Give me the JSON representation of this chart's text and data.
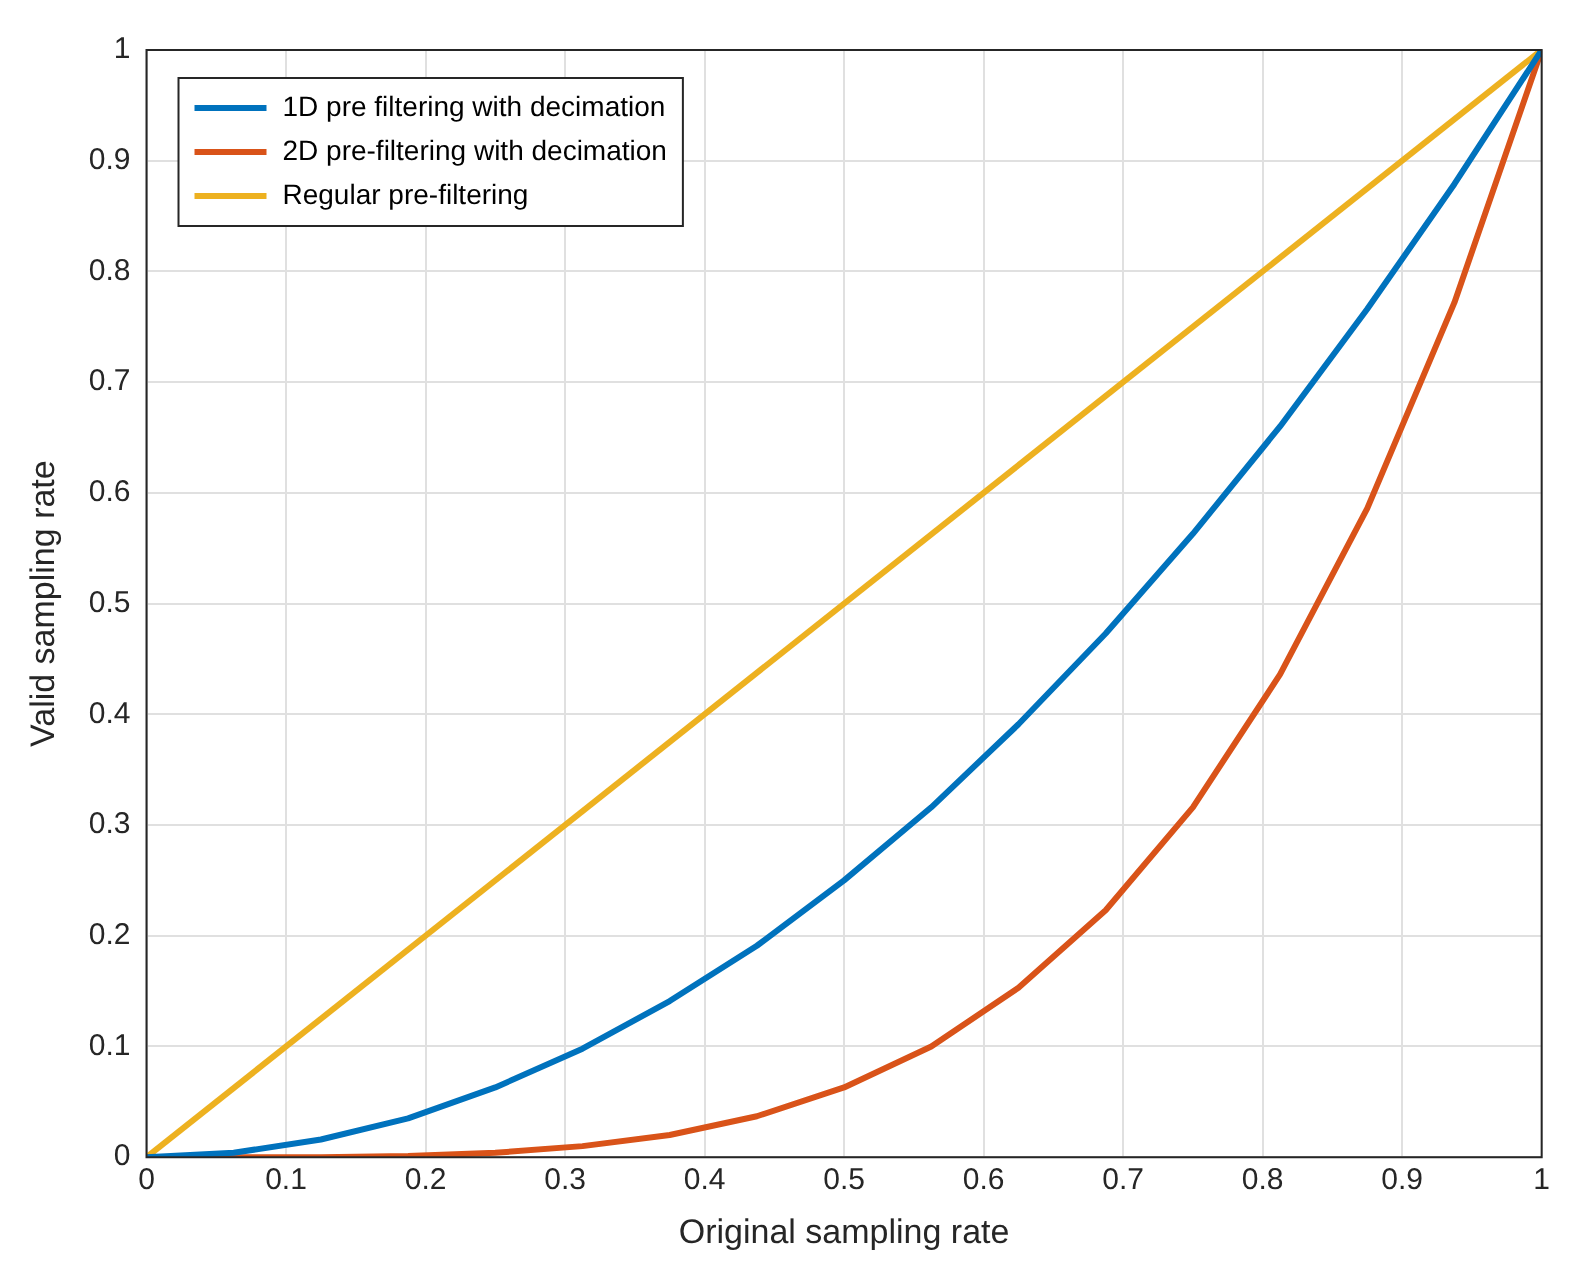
{
  "chart_data": {
    "type": "line",
    "xlabel": "Original sampling rate",
    "ylabel": "Valid sampling rate",
    "series": [
      {
        "name": "1D pre filtering with decimation",
        "color": "#0072bd",
        "x": [
          0,
          0.0625,
          0.125,
          0.1875,
          0.25,
          0.3125,
          0.375,
          0.4375,
          0.5,
          0.5625,
          0.625,
          0.6875,
          0.75,
          0.8125,
          0.875,
          0.9375,
          1
        ],
        "values": [
          0,
          0.004,
          0.016,
          0.035,
          0.063,
          0.098,
          0.141,
          0.191,
          0.25,
          0.316,
          0.391,
          0.473,
          0.563,
          0.66,
          0.766,
          0.879,
          1
        ]
      },
      {
        "name": "2D pre-filtering with decimation",
        "color": "#d95319",
        "x": [
          0,
          0.0625,
          0.125,
          0.1875,
          0.25,
          0.3125,
          0.375,
          0.4375,
          0.5,
          0.5625,
          0.625,
          0.6875,
          0.75,
          0.8125,
          0.875,
          0.9375,
          1
        ],
        "values": [
          0,
          0,
          0,
          0.001,
          0.004,
          0.01,
          0.02,
          0.037,
          0.063,
          0.1,
          0.153,
          0.223,
          0.316,
          0.436,
          0.586,
          0.772,
          1
        ]
      },
      {
        "name": "Regular pre-filtering",
        "color": "#edb120",
        "x": [
          0,
          1
        ],
        "values": [
          0,
          1
        ]
      }
    ],
    "xlim": [
      0,
      1
    ],
    "xticks": [
      0,
      0.1,
      0.2,
      0.3,
      0.4,
      0.5,
      0.6,
      0.7,
      0.8,
      0.9,
      1
    ],
    "ylim": [
      0,
      1
    ],
    "yticks": [
      0,
      0.1,
      0.2,
      0.3,
      0.4,
      0.5,
      0.6,
      0.7,
      0.8,
      0.9,
      1
    ],
    "grid": true,
    "legend": "top left",
    "marker": "none",
    "line_style": "solid"
  }
}
